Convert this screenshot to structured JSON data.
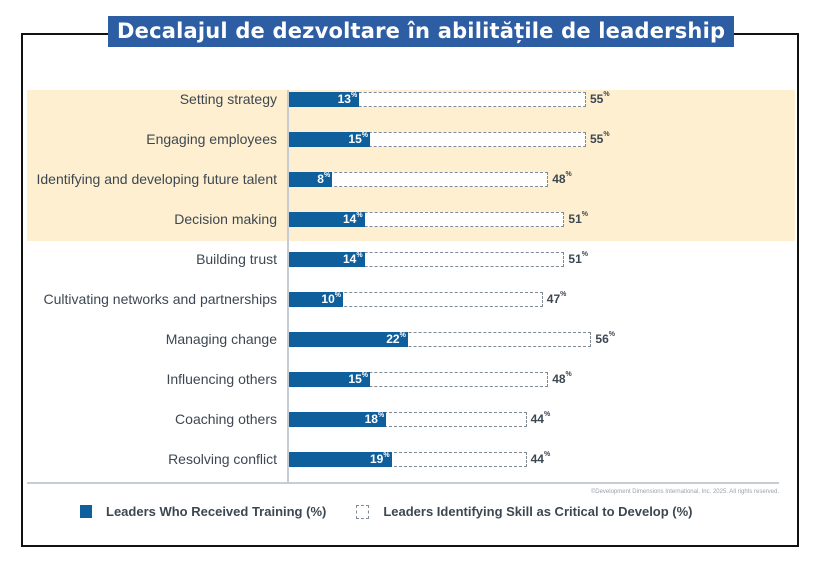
{
  "chart_data": {
    "type": "bar",
    "orientation": "horizontal",
    "title": "Decalajul de dezvoltare în abilitățile de leadership",
    "categories": [
      "Setting strategy",
      "Engaging employees",
      "Identifying and developing future talent",
      "Decision making",
      "Building trust",
      "Cultivating networks and partnerships",
      "Managing change",
      "Influencing others",
      "Coaching others",
      "Resolving conflict"
    ],
    "series": [
      {
        "name": "Leaders Who Received Training (%)",
        "values": [
          13,
          15,
          8,
          14,
          14,
          10,
          22,
          15,
          18,
          19
        ],
        "color": "#0f5f9c",
        "style": "solid"
      },
      {
        "name": "Leaders Identifying Skill as Critical to Develop (%)",
        "values": [
          55,
          55,
          48,
          51,
          51,
          47,
          56,
          48,
          44,
          44
        ],
        "color": "#7f8a96",
        "style": "dashed-outline"
      }
    ],
    "highlighted_categories": [
      "Setting strategy",
      "Engaging employees",
      "Identifying and developing future talent",
      "Decision making"
    ],
    "highlight_color": "#fdefcf",
    "value_suffix": "%",
    "xlabel": "",
    "ylabel": "",
    "legend_position": "bottom",
    "grid": false
  },
  "title_color": "#2d5ea3",
  "copyright": "©Development Dimensions International, Inc. 2025. All rights reserved.",
  "legend": {
    "training": "Leaders Who Received Training (%)",
    "critical": "Leaders Identifying Skill as Critical to Develop (%)"
  }
}
